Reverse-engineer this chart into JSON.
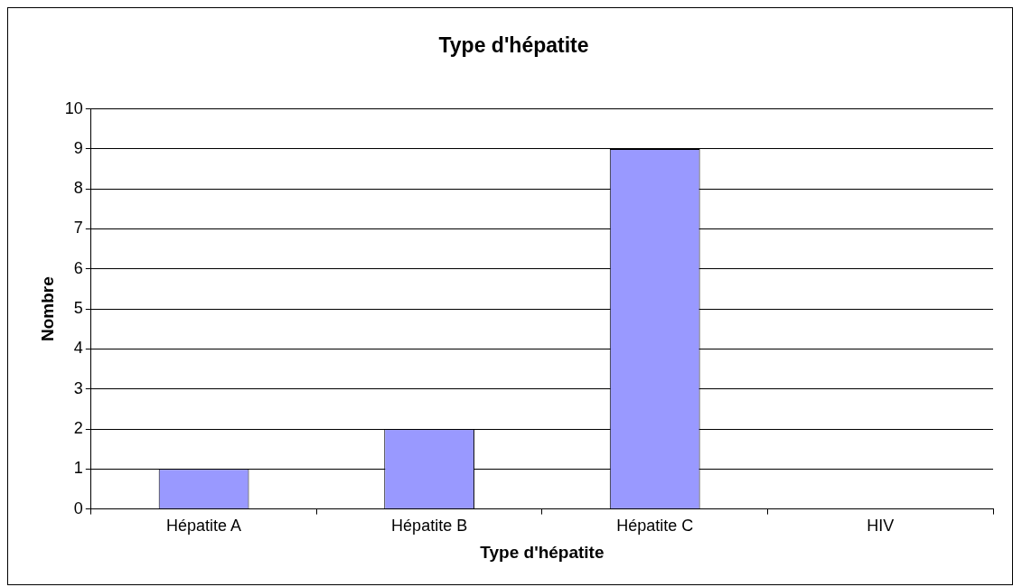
{
  "chart_data": {
    "type": "bar",
    "title": "Type d'hépatite",
    "xlabel": "Type d'hépatite",
    "ylabel": "Nombre",
    "categories": [
      "Hépatite A",
      "Hépatite B",
      "Hépatite C",
      "HIV"
    ],
    "values": [
      1,
      2,
      9,
      0
    ],
    "color": "#9999ff",
    "ylim": [
      0,
      10
    ],
    "yticks": [
      0,
      1,
      2,
      3,
      4,
      5,
      6,
      7,
      8,
      9,
      10
    ],
    "grid": "y",
    "legend": false
  }
}
